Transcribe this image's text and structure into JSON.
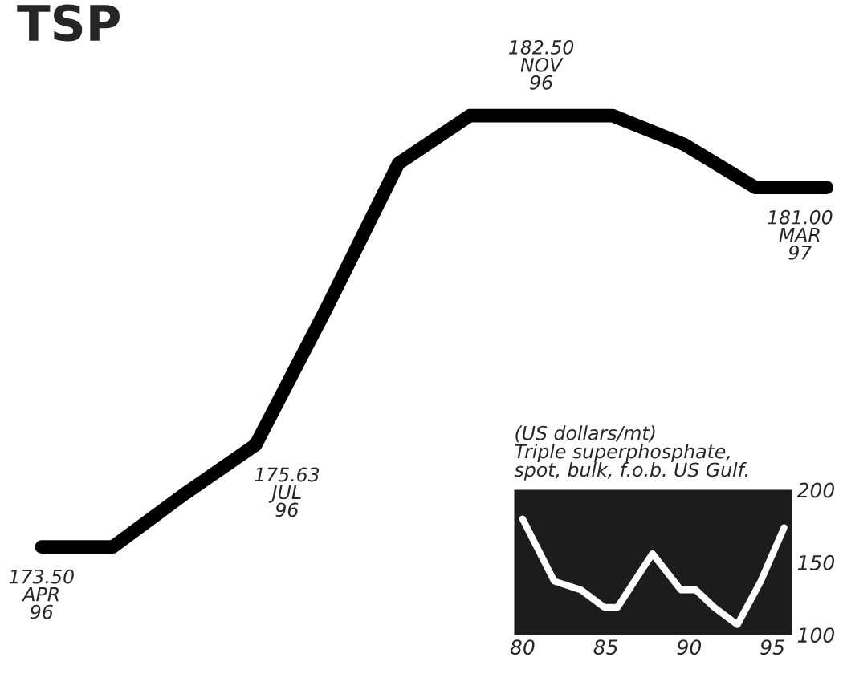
{
  "chart_data": [
    {
      "type": "line",
      "title": "TSP",
      "categories": [
        null,
        null,
        null,
        null,
        null,
        null,
        null,
        null,
        null,
        null,
        null,
        null
      ],
      "values": [
        173.5,
        173.5,
        174.6,
        175.63,
        178.5,
        181.5,
        182.5,
        182.5,
        182.5,
        181.9,
        181.0,
        181.0
      ],
      "value_labels": [
        "173.50\nAPR\n96",
        null,
        null,
        "175.63\nJUL\n96",
        null,
        null,
        null,
        "182.50\nNOV\n96",
        null,
        null,
        null,
        "181.00\nMAR\n97"
      ],
      "color": "#000000",
      "tick_labels": false,
      "grid": false,
      "legend": false
    },
    {
      "type": "line",
      "title": "(US dollars/mt)\nTriple superphosphate,\nspot, bulk, f.o.b. US Gulf.",
      "x": [
        80,
        81.9,
        83.5,
        84.9,
        85.7,
        87.8,
        89.5,
        90.4,
        91.5,
        92.9,
        94.3,
        95.7
      ],
      "values": [
        180,
        137,
        131,
        119,
        119,
        156,
        131,
        131,
        119,
        107,
        137,
        174
      ],
      "color": "#ffffff",
      "xlim": [
        79.5,
        96.2
      ],
      "xticks": [
        80,
        85,
        90,
        95
      ],
      "ylim": [
        100,
        200
      ],
      "yticks": [
        100,
        150,
        200
      ],
      "grid": false,
      "legend": false
    }
  ]
}
